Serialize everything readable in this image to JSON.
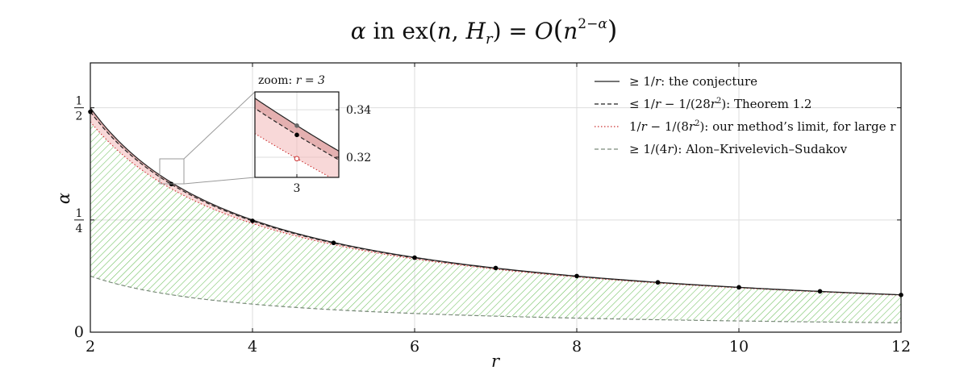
{
  "chart_data": {
    "type": "line",
    "title": "α in ex(n, H_r) = O(n^{2−α})",
    "xlabel": "r",
    "ylabel": "α",
    "xlim": [
      2,
      12
    ],
    "ylim": [
      0,
      0.6
    ],
    "x_ticks": [
      2,
      4,
      6,
      8,
      10,
      12
    ],
    "x_tick_labels": [
      "2",
      "4",
      "6",
      "8",
      "10",
      "12"
    ],
    "y_ticks": [
      0,
      0.25,
      0.5
    ],
    "y_tick_labels": [
      {
        "num": "",
        "den": "",
        "plain": "0"
      },
      {
        "num": "1",
        "den": "4",
        "plain": ""
      },
      {
        "num": "1",
        "den": "2",
        "plain": ""
      }
    ],
    "grid": true,
    "legend_position": "top-right",
    "series": [
      {
        "name": "≥ 1/r: the conjecture",
        "style": "solid",
        "color": "#222222",
        "formula": "1/r"
      },
      {
        "name": "≤ 1/r − 1/(28r²): Theorem 1.2",
        "style": "dashed",
        "color": "#222222",
        "formula": "1/r - 1/(28 r^2)"
      },
      {
        "name": "1/r − 1/(8r²): our method's limit, for large r",
        "style": "dotted",
        "color": "#cc3333",
        "formula": "1/r - 1/(8 r^2)"
      },
      {
        "name": "≥ 1/(4r): Alon–Krivelevich–Sudakov",
        "style": "dashed",
        "color": "#7a8a7a",
        "formula": "1/(4 r)"
      }
    ],
    "points": {
      "x": [
        2,
        3,
        4,
        5,
        6,
        7,
        8,
        9,
        10,
        11,
        12
      ],
      "y": [
        0.491,
        0.33,
        0.248,
        0.199,
        0.166,
        0.143,
        0.125,
        0.111,
        0.1,
        0.091,
        0.083
      ]
    },
    "inset": {
      "title_prefix": "zoom:",
      "title_var": "r = 3",
      "xlim": [
        2.9,
        3.1
      ],
      "ylim": [
        0.3115,
        0.3475
      ],
      "x_ticks": [
        3
      ],
      "x_tick_labels": [
        "3"
      ],
      "y_ticks": [
        0.32,
        0.34
      ],
      "y_tick_labels": [
        "0.32",
        "0.34"
      ],
      "markers": [
        {
          "name": "conjecture value",
          "x": 3,
          "y": 0.3333,
          "kind": "filled-gray"
        },
        {
          "name": "theorem value",
          "x": 3,
          "y": 0.3294,
          "kind": "filled-black"
        },
        {
          "name": "method limit value",
          "x": 3,
          "y": 0.3194,
          "kind": "open-red"
        }
      ]
    },
    "colors": {
      "hatch_green": "#6cbf5c",
      "band_pink": "#f2b8b8",
      "band_dark_pink": "#d98f8f",
      "grid": "#dddddd"
    }
  },
  "legend": {
    "item1_rel": "≥",
    "item1_text": ": the conjecture",
    "item2_rel": "≤",
    "item2_text": ": Theorem 1.2",
    "item3_text": ": our method’s limit, for large r",
    "item4_rel": "≥",
    "item4_text": ": Alon–Krivelevich–Sudakov"
  }
}
